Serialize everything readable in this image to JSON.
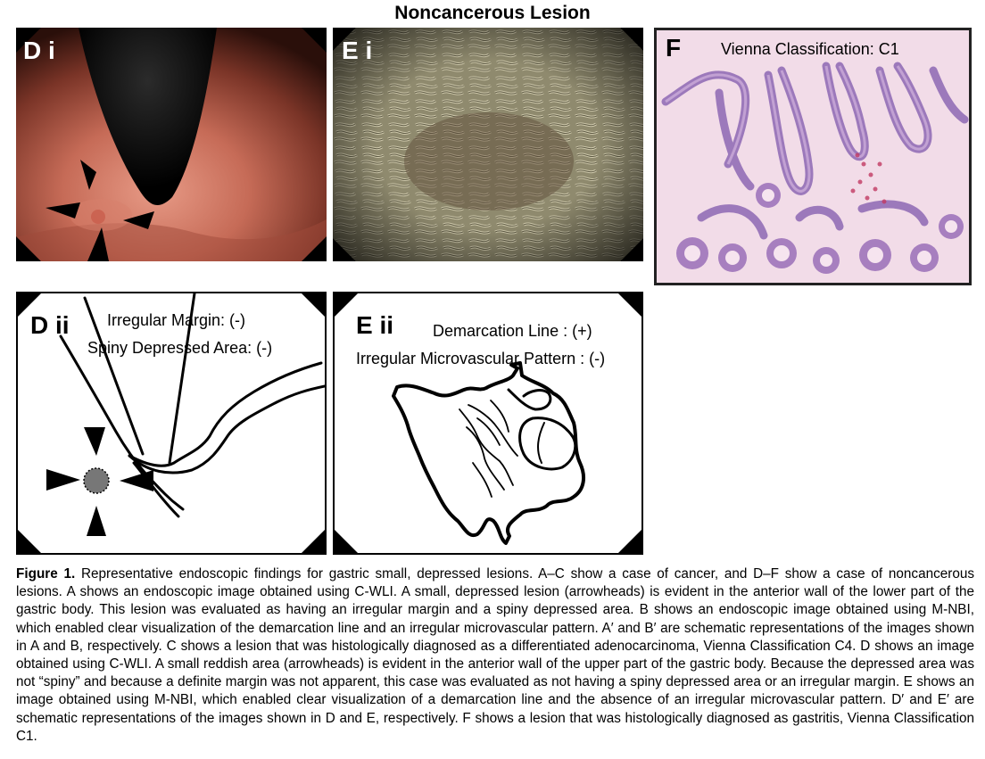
{
  "figure": {
    "title": "Noncancerous Lesion"
  },
  "panels": {
    "di": {
      "label": "D i"
    },
    "ei": {
      "label": "E i"
    },
    "f": {
      "label": "F",
      "annotation": "Vienna Classification: C1"
    },
    "dii": {
      "label": "D ii",
      "annotation_1": "Irregular Margin: (-)",
      "annotation_2": "Spiny Depressed Area: (-)"
    },
    "eii": {
      "label": "E ii",
      "annotation_1": "Demarcation Line : (+)",
      "annotation_2": "Irregular Microvascular Pattern : (-)"
    }
  },
  "caption": {
    "figure_label": "Figure 1.",
    "text": "Representative endoscopic findings for gastric small, depressed lesions. A–C show a case of cancer, and D–F show a case of noncancerous lesions. A shows an endoscopic image obtained using C-WLI. A small, depressed lesion (arrowheads) is evident in the anterior wall of the lower part of the gastric body. This lesion was evaluated as having an irregular margin and a spiny depressed area. B shows an endoscopic image obtained using M-NBI, which enabled clear visualization of the demarcation line and an irregular microvascular pattern. A′ and B′ are schematic representations of the images shown in A and B, respectively. C shows a lesion that was histologically diagnosed as a differentiated adenocarcinoma, Vienna Classification C4. D shows an image obtained using C-WLI. A small reddish area (arrowheads) is evident in the anterior wall of the upper part of the gastric body. Because the depressed area was not “spiny” and because a definite margin was not apparent, this case was evaluated as not having a spiny depressed area or an irregular margin. E shows an image obtained using M-NBI, which enabled clear visualization of a demarcation line and the absence of an irregular microvascular pattern. D′ and E′ are schematic representations of the images shown in D and E, respectively. F shows a lesion that was histologically diagnosed as gastritis, Vienna Classification C1."
  }
}
